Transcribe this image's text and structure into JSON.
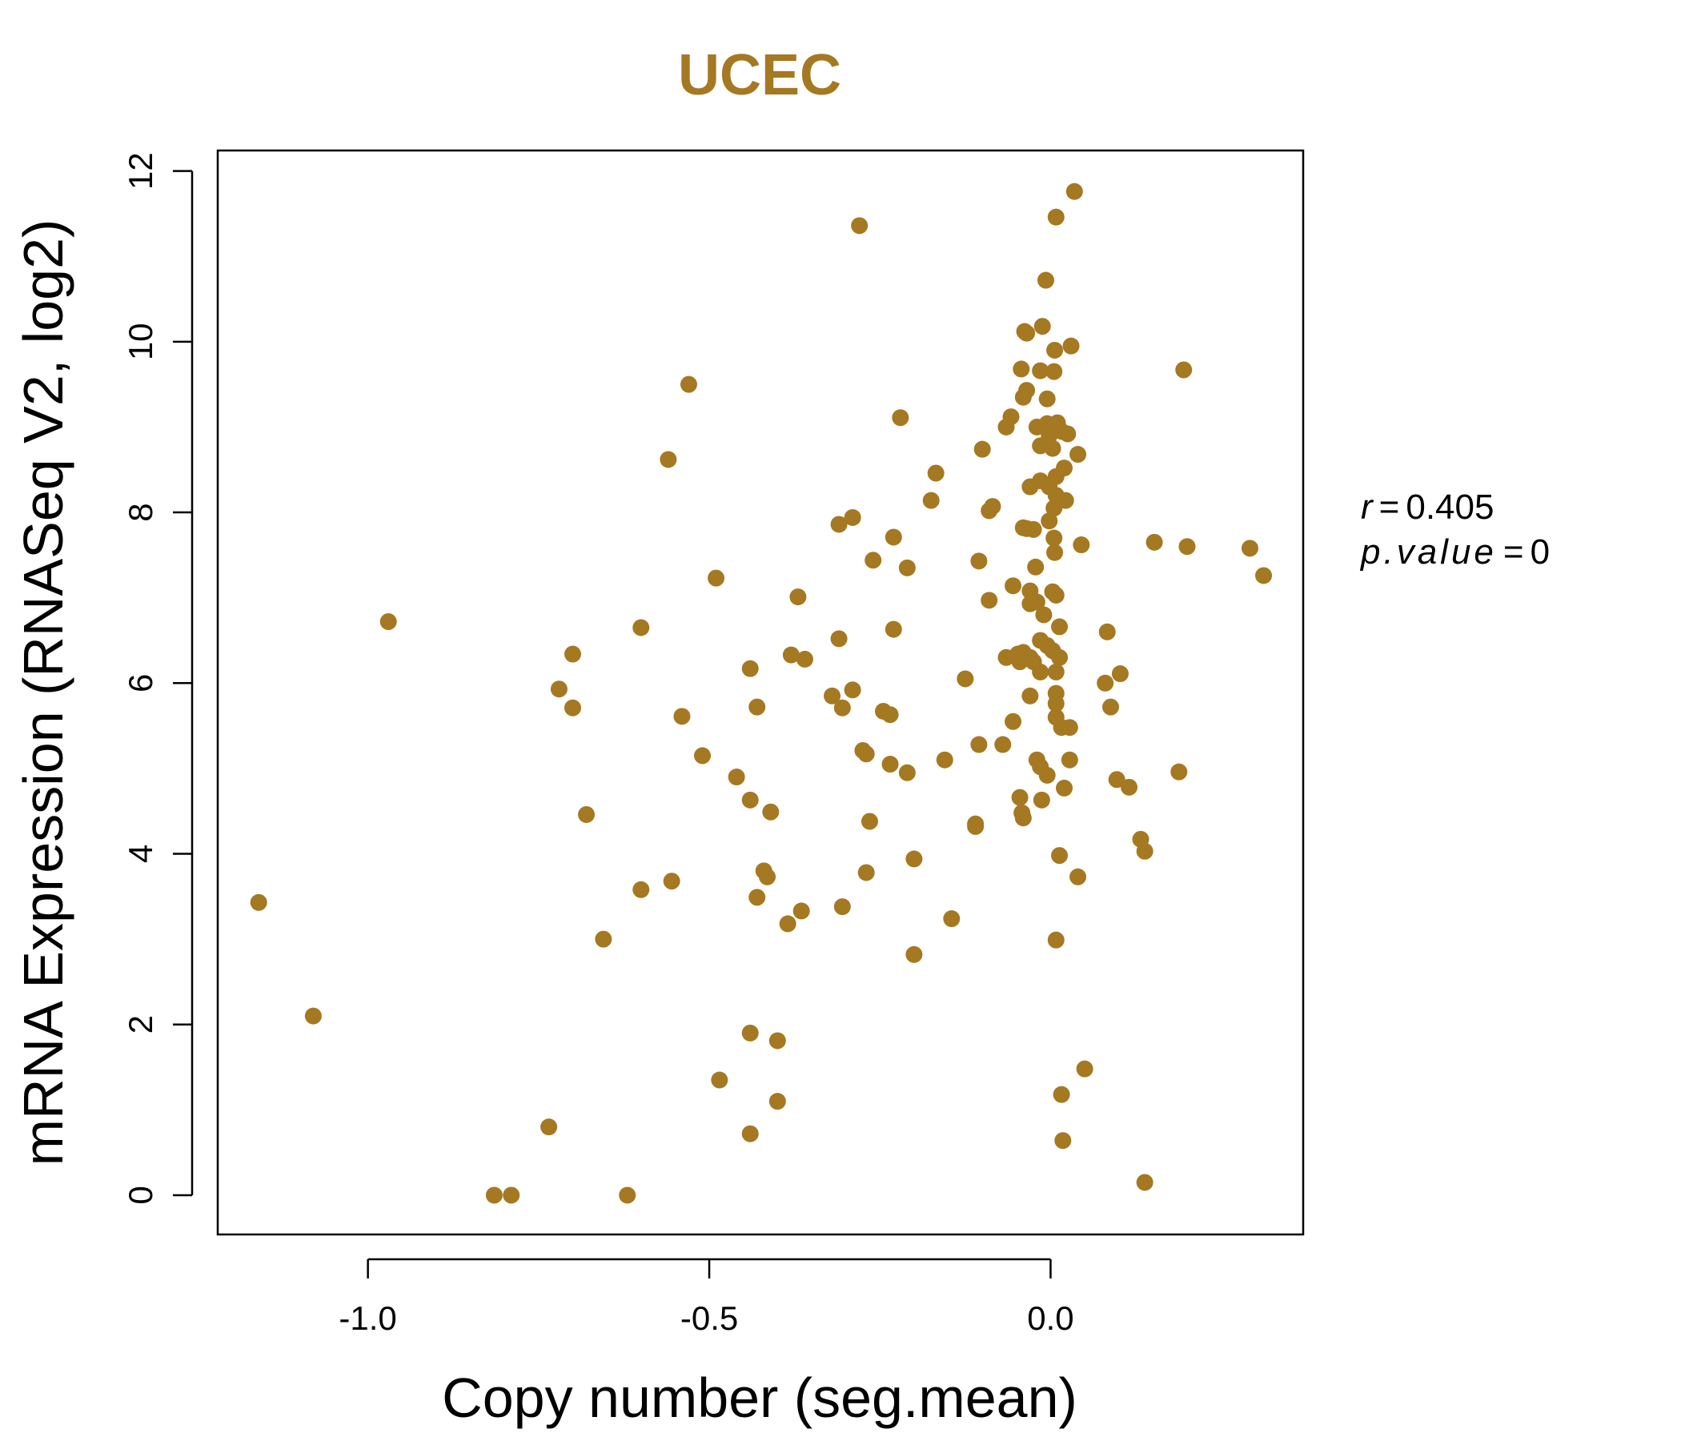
{
  "chart_data": {
    "type": "scatter",
    "title": "UCEC",
    "xlabel": "Copy number (seg.mean)",
    "ylabel": "mRNA Expression (RNASeq V2, log2)",
    "xlim": [
      -1.22,
      0.37
    ],
    "ylim": [
      -0.46,
      12.24
    ],
    "xticks": [
      -1.0,
      -0.5,
      0.0
    ],
    "xtick_labels": [
      "-1.0",
      "-0.5",
      "0.0"
    ],
    "yticks": [
      0,
      2,
      4,
      6,
      8,
      10,
      12
    ],
    "ytick_labels": [
      "0",
      "2",
      "4",
      "6",
      "8",
      "10",
      "12"
    ],
    "grid": false,
    "point_color": "#A57822",
    "annotation": {
      "r_label": "r",
      "r_value": "0.405",
      "p_label": "p.value",
      "p_value": "0",
      "eq": "="
    },
    "points": [
      {
        "x": 0.035,
        "y": 11.76
      },
      {
        "x": 0.008,
        "y": 11.46
      },
      {
        "x": -0.28,
        "y": 11.36
      },
      {
        "x": -0.007,
        "y": 10.72
      },
      {
        "x": -0.012,
        "y": 10.18
      },
      {
        "x": -0.038,
        "y": 10.12
      },
      {
        "x": -0.035,
        "y": 10.1
      },
      {
        "x": 0.03,
        "y": 9.95
      },
      {
        "x": 0.006,
        "y": 9.9
      },
      {
        "x": 0.195,
        "y": 9.67
      },
      {
        "x": -0.043,
        "y": 9.68
      },
      {
        "x": -0.015,
        "y": 9.66
      },
      {
        "x": 0.005,
        "y": 9.65
      },
      {
        "x": -0.53,
        "y": 9.5
      },
      {
        "x": -0.035,
        "y": 9.43
      },
      {
        "x": -0.04,
        "y": 9.35
      },
      {
        "x": -0.005,
        "y": 9.33
      },
      {
        "x": -0.22,
        "y": 9.11
      },
      {
        "x": -0.058,
        "y": 9.12
      },
      {
        "x": -0.065,
        "y": 9.0
      },
      {
        "x": -0.02,
        "y": 9.0
      },
      {
        "x": -0.005,
        "y": 9.04
      },
      {
        "x": 0.01,
        "y": 9.05
      },
      {
        "x": 0.003,
        "y": 9.0
      },
      {
        "x": 0.016,
        "y": 8.95
      },
      {
        "x": 0.025,
        "y": 8.92
      },
      {
        "x": -0.002,
        "y": 8.9
      },
      {
        "x": -0.015,
        "y": 8.78
      },
      {
        "x": 0.003,
        "y": 8.75
      },
      {
        "x": -0.1,
        "y": 8.74
      },
      {
        "x": 0.04,
        "y": 8.68
      },
      {
        "x": -0.56,
        "y": 8.62
      },
      {
        "x": 0.02,
        "y": 8.52
      },
      {
        "x": -0.168,
        "y": 8.46
      },
      {
        "x": 0.008,
        "y": 8.42
      },
      {
        "x": -0.015,
        "y": 8.37
      },
      {
        "x": -0.03,
        "y": 8.3
      },
      {
        "x": -0.002,
        "y": 8.3
      },
      {
        "x": 0.008,
        "y": 8.2
      },
      {
        "x": 0.022,
        "y": 8.14
      },
      {
        "x": -0.175,
        "y": 8.14
      },
      {
        "x": -0.085,
        "y": 8.07
      },
      {
        "x": -0.09,
        "y": 8.02
      },
      {
        "x": 0.005,
        "y": 8.05
      },
      {
        "x": -0.29,
        "y": 7.94
      },
      {
        "x": -0.002,
        "y": 7.9
      },
      {
        "x": -0.31,
        "y": 7.86
      },
      {
        "x": -0.04,
        "y": 7.82
      },
      {
        "x": -0.025,
        "y": 7.8
      },
      {
        "x": -0.035,
        "y": 7.81
      },
      {
        "x": -0.23,
        "y": 7.71
      },
      {
        "x": 0.005,
        "y": 7.7
      },
      {
        "x": 0.152,
        "y": 7.65
      },
      {
        "x": 0.045,
        "y": 7.62
      },
      {
        "x": 0.2,
        "y": 7.6
      },
      {
        "x": 0.292,
        "y": 7.58
      },
      {
        "x": 0.006,
        "y": 7.53
      },
      {
        "x": -0.26,
        "y": 7.44
      },
      {
        "x": -0.105,
        "y": 7.43
      },
      {
        "x": -0.21,
        "y": 7.35
      },
      {
        "x": -0.022,
        "y": 7.36
      },
      {
        "x": 0.312,
        "y": 7.26
      },
      {
        "x": -0.49,
        "y": 7.23
      },
      {
        "x": -0.055,
        "y": 7.14
      },
      {
        "x": -0.03,
        "y": 7.08
      },
      {
        "x": 0.003,
        "y": 7.07
      },
      {
        "x": 0.008,
        "y": 7.03
      },
      {
        "x": -0.37,
        "y": 7.01
      },
      {
        "x": -0.09,
        "y": 6.97
      },
      {
        "x": -0.02,
        "y": 6.95
      },
      {
        "x": -0.03,
        "y": 6.93
      },
      {
        "x": -0.01,
        "y": 6.8
      },
      {
        "x": -0.97,
        "y": 6.72
      },
      {
        "x": -0.6,
        "y": 6.65
      },
      {
        "x": 0.013,
        "y": 6.66
      },
      {
        "x": -0.23,
        "y": 6.63
      },
      {
        "x": 0.083,
        "y": 6.6
      },
      {
        "x": -0.31,
        "y": 6.52
      },
      {
        "x": -0.015,
        "y": 6.5
      },
      {
        "x": -0.005,
        "y": 6.44
      },
      {
        "x": 0.003,
        "y": 6.38
      },
      {
        "x": -0.04,
        "y": 6.36
      },
      {
        "x": -0.048,
        "y": 6.34
      },
      {
        "x": -0.7,
        "y": 6.34
      },
      {
        "x": -0.38,
        "y": 6.33
      },
      {
        "x": -0.065,
        "y": 6.3
      },
      {
        "x": -0.03,
        "y": 6.3
      },
      {
        "x": 0.013,
        "y": 6.3
      },
      {
        "x": -0.36,
        "y": 6.28
      },
      {
        "x": -0.045,
        "y": 6.25
      },
      {
        "x": -0.025,
        "y": 6.25
      },
      {
        "x": -0.44,
        "y": 6.17
      },
      {
        "x": -0.015,
        "y": 6.13
      },
      {
        "x": 0.008,
        "y": 6.13
      },
      {
        "x": 0.102,
        "y": 6.11
      },
      {
        "x": -0.125,
        "y": 6.05
      },
      {
        "x": 0.08,
        "y": 6.0
      },
      {
        "x": -0.72,
        "y": 5.93
      },
      {
        "x": -0.29,
        "y": 5.92
      },
      {
        "x": 0.008,
        "y": 5.88
      },
      {
        "x": -0.32,
        "y": 5.85
      },
      {
        "x": -0.03,
        "y": 5.85
      },
      {
        "x": 0.008,
        "y": 5.76
      },
      {
        "x": -0.7,
        "y": 5.71
      },
      {
        "x": -0.43,
        "y": 5.72
      },
      {
        "x": -0.305,
        "y": 5.71
      },
      {
        "x": 0.088,
        "y": 5.72
      },
      {
        "x": -0.245,
        "y": 5.67
      },
      {
        "x": -0.235,
        "y": 5.63
      },
      {
        "x": -0.54,
        "y": 5.61
      },
      {
        "x": 0.008,
        "y": 5.6
      },
      {
        "x": -0.055,
        "y": 5.55
      },
      {
        "x": 0.016,
        "y": 5.48
      },
      {
        "x": 0.028,
        "y": 5.48
      },
      {
        "x": -0.105,
        "y": 5.28
      },
      {
        "x": -0.07,
        "y": 5.28
      },
      {
        "x": -0.275,
        "y": 5.21
      },
      {
        "x": -0.27,
        "y": 5.17
      },
      {
        "x": -0.51,
        "y": 5.15
      },
      {
        "x": -0.155,
        "y": 5.1
      },
      {
        "x": -0.02,
        "y": 5.1
      },
      {
        "x": 0.028,
        "y": 5.1
      },
      {
        "x": -0.235,
        "y": 5.05
      },
      {
        "x": -0.015,
        "y": 5.02
      },
      {
        "x": -0.21,
        "y": 4.95
      },
      {
        "x": 0.188,
        "y": 4.96
      },
      {
        "x": -0.46,
        "y": 4.9
      },
      {
        "x": -0.005,
        "y": 4.92
      },
      {
        "x": 0.097,
        "y": 4.87
      },
      {
        "x": 0.115,
        "y": 4.78
      },
      {
        "x": 0.02,
        "y": 4.77
      },
      {
        "x": -0.045,
        "y": 4.66
      },
      {
        "x": -0.44,
        "y": 4.63
      },
      {
        "x": -0.013,
        "y": 4.63
      },
      {
        "x": -0.41,
        "y": 4.49
      },
      {
        "x": -0.042,
        "y": 4.48
      },
      {
        "x": -0.04,
        "y": 4.42
      },
      {
        "x": -0.68,
        "y": 4.46
      },
      {
        "x": -0.265,
        "y": 4.38
      },
      {
        "x": -0.11,
        "y": 4.35
      },
      {
        "x": -0.11,
        "y": 4.32
      },
      {
        "x": 0.132,
        "y": 4.17
      },
      {
        "x": 0.138,
        "y": 4.03
      },
      {
        "x": 0.013,
        "y": 3.98
      },
      {
        "x": -0.2,
        "y": 3.94
      },
      {
        "x": -0.42,
        "y": 3.8
      },
      {
        "x": -0.27,
        "y": 3.78
      },
      {
        "x": -0.415,
        "y": 3.73
      },
      {
        "x": 0.04,
        "y": 3.73
      },
      {
        "x": -0.555,
        "y": 3.68
      },
      {
        "x": -0.6,
        "y": 3.58
      },
      {
        "x": -0.43,
        "y": 3.49
      },
      {
        "x": -1.16,
        "y": 3.43
      },
      {
        "x": -0.305,
        "y": 3.38
      },
      {
        "x": -0.365,
        "y": 3.33
      },
      {
        "x": -0.145,
        "y": 3.24
      },
      {
        "x": -0.385,
        "y": 3.18
      },
      {
        "x": -0.655,
        "y": 3.0
      },
      {
        "x": 0.008,
        "y": 2.99
      },
      {
        "x": -0.2,
        "y": 2.82
      },
      {
        "x": -1.08,
        "y": 2.1
      },
      {
        "x": -0.44,
        "y": 1.9
      },
      {
        "x": -0.4,
        "y": 1.81
      },
      {
        "x": 0.05,
        "y": 1.48
      },
      {
        "x": -0.485,
        "y": 1.35
      },
      {
        "x": 0.016,
        "y": 1.18
      },
      {
        "x": -0.4,
        "y": 1.1
      },
      {
        "x": -0.735,
        "y": 0.8
      },
      {
        "x": -0.44,
        "y": 0.72
      },
      {
        "x": 0.018,
        "y": 0.64
      },
      {
        "x": 0.138,
        "y": 0.15
      },
      {
        "x": -0.815,
        "y": 0.0
      },
      {
        "x": -0.79,
        "y": 0.0
      },
      {
        "x": -0.62,
        "y": 0.0
      }
    ]
  }
}
